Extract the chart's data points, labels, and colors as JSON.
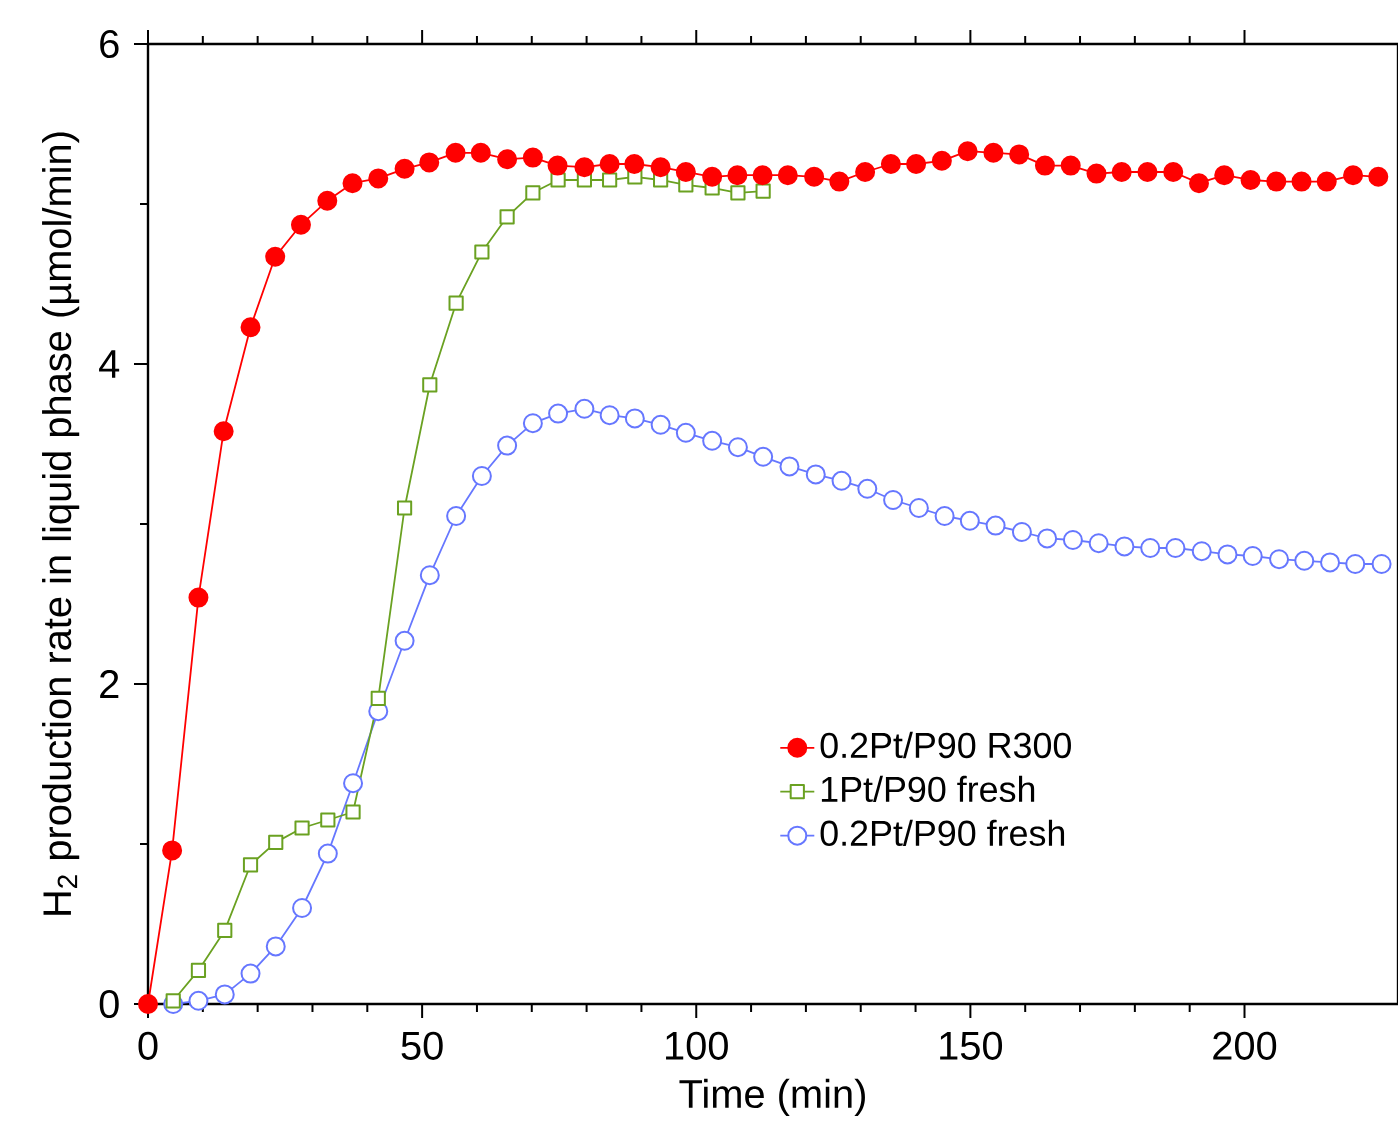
{
  "chart_data": {
    "type": "line",
    "xlabel": "Time (min)",
    "ylabel": "H$_{2}$ production rate in liquid phase (µmol/min)",
    "xlim": [
      0,
      228
    ],
    "ylim": [
      0,
      6
    ],
    "xticks": [
      0,
      50,
      100,
      150,
      200
    ],
    "yticks": [
      0,
      2,
      4,
      6
    ],
    "legend": "right",
    "grid": false,
    "series": [
      {
        "name": "0.2Pt/P90 R300",
        "color": "#ff0000",
        "marker": "circle",
        "x": [
          0,
          4.4,
          9.2,
          13.8,
          18.7,
          23.2,
          27.9,
          32.7,
          37.3,
          42.0,
          46.8,
          51.3,
          56.1,
          60.7,
          65.5,
          70.2,
          74.7,
          79.6,
          84.2,
          88.7,
          93.5,
          98.1,
          102.9,
          107.5,
          112.1,
          116.7,
          121.5,
          126.1,
          130.8,
          135.5,
          140.1,
          144.8,
          149.5,
          154.2,
          158.9,
          163.6,
          168.3,
          173.0,
          177.6,
          182.3,
          187.0,
          191.7,
          196.3,
          201.1,
          205.8,
          210.4,
          215.0,
          219.8,
          224.4
        ],
        "values": [
          0,
          0.96,
          2.54,
          3.58,
          4.23,
          4.67,
          4.87,
          5.02,
          5.13,
          5.16,
          5.22,
          5.26,
          5.32,
          5.32,
          5.28,
          5.29,
          5.24,
          5.23,
          5.25,
          5.25,
          5.23,
          5.2,
          5.17,
          5.18,
          5.18,
          5.18,
          5.17,
          5.14,
          5.2,
          5.25,
          5.25,
          5.27,
          5.33,
          5.32,
          5.31,
          5.24,
          5.24,
          5.19,
          5.2,
          5.2,
          5.2,
          5.13,
          5.18,
          5.15,
          5.14,
          5.14,
          5.14,
          5.18,
          5.17
        ]
      },
      {
        "name": "1Pt/P90 fresh",
        "color": "#6aa121",
        "marker": "square",
        "x": [
          4.6,
          9.2,
          14.0,
          18.7,
          23.3,
          28.1,
          32.8,
          37.4,
          42.0,
          46.8,
          51.4,
          56.2,
          60.9,
          65.5,
          70.2,
          74.8,
          79.6,
          84.2,
          88.8,
          93.5,
          98.1,
          102.9,
          107.6,
          112.2
        ],
        "values": [
          0.02,
          0.21,
          0.46,
          0.87,
          1.01,
          1.1,
          1.15,
          1.2,
          1.91,
          3.1,
          3.87,
          4.38,
          4.7,
          4.92,
          5.07,
          5.15,
          5.15,
          5.15,
          5.17,
          5.15,
          5.12,
          5.1,
          5.07,
          5.08
        ]
      },
      {
        "name": "0.2Pt/P90 fresh",
        "color": "#6677ff",
        "marker": "circle",
        "x": [
          4.6,
          9.2,
          14.0,
          18.7,
          23.3,
          28.1,
          32.8,
          37.4,
          42.0,
          46.8,
          51.4,
          56.2,
          60.9,
          65.5,
          70.2,
          74.8,
          79.6,
          84.2,
          88.8,
          93.5,
          98.1,
          102.9,
          107.6,
          112.2,
          117.0,
          121.8,
          126.5,
          131.2,
          135.9,
          140.6,
          145.3,
          149.9,
          154.6,
          159.4,
          164.0,
          168.7,
          173.4,
          178.1,
          182.8,
          187.4,
          192.2,
          196.9,
          201.5,
          206.3,
          210.9,
          215.6,
          220.2,
          225.0
        ],
        "values": [
          0.0,
          0.02,
          0.06,
          0.19,
          0.36,
          0.6,
          0.94,
          1.38,
          1.83,
          2.27,
          2.68,
          3.05,
          3.3,
          3.49,
          3.63,
          3.69,
          3.72,
          3.68,
          3.66,
          3.62,
          3.57,
          3.52,
          3.48,
          3.42,
          3.36,
          3.31,
          3.27,
          3.22,
          3.15,
          3.1,
          3.05,
          3.02,
          2.99,
          2.95,
          2.91,
          2.9,
          2.88,
          2.86,
          2.85,
          2.85,
          2.83,
          2.81,
          2.8,
          2.78,
          2.77,
          2.76,
          2.75,
          2.75
        ]
      }
    ]
  }
}
